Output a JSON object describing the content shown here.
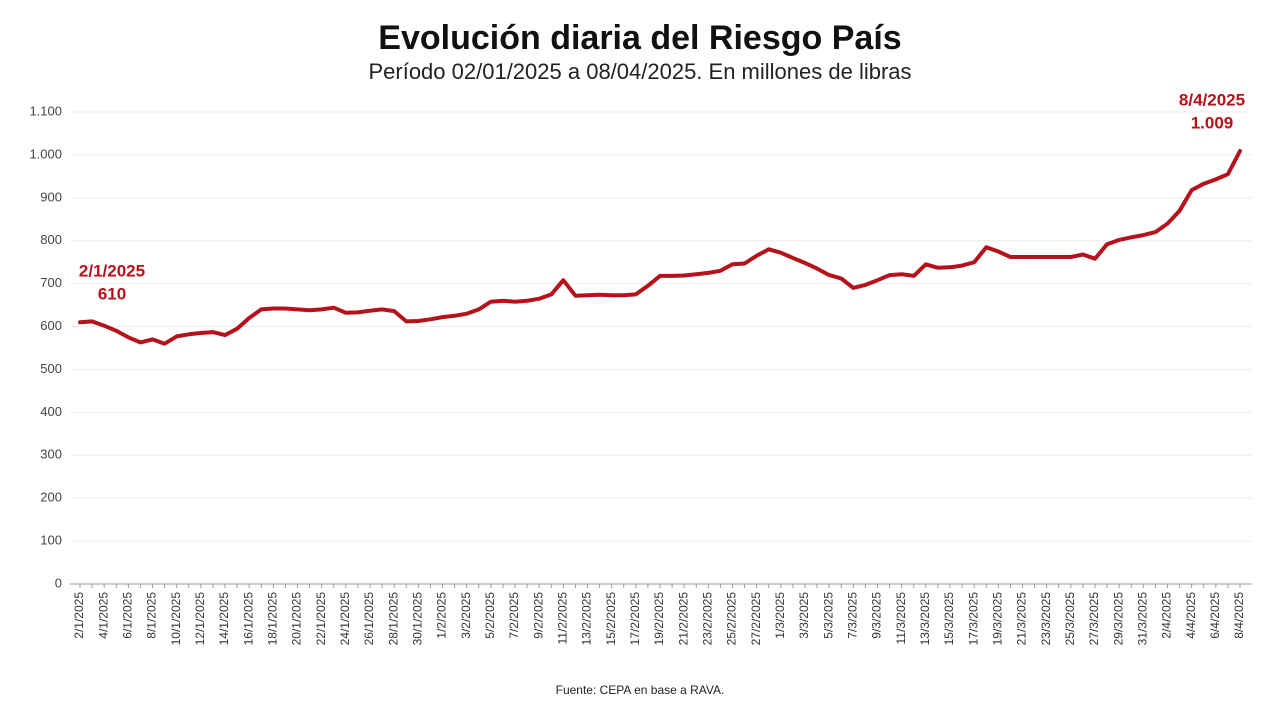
{
  "chart_data": {
    "type": "line",
    "title": "Evolución diaria del Riesgo País",
    "subtitle": "Período 02/01/2025 a 08/04/2025. En millones de libras",
    "source": "Fuente: CEPA en base a RAVA.",
    "categories": [
      "2/1/2025",
      null,
      "4/1/2025",
      null,
      "6/1/2025",
      null,
      "8/1/2025",
      null,
      "10/1/2025",
      null,
      "12/1/2025",
      null,
      "14/1/2025",
      null,
      "16/1/2025",
      null,
      "18/1/2025",
      null,
      "20/1/2025",
      null,
      "22/1/2025",
      null,
      "24/1/2025",
      null,
      "26/1/2025",
      null,
      "28/1/2025",
      null,
      "30/1/2025",
      null,
      "1/2/2025",
      null,
      "3/2/2025",
      null,
      "5/2/2025",
      null,
      "7/2/2025",
      null,
      "9/2/2025",
      null,
      "11/2/2025",
      null,
      "13/2/2025",
      null,
      "15/2/2025",
      null,
      "17/2/2025",
      null,
      "19/2/2025",
      null,
      "21/2/2025",
      null,
      "23/2/2025",
      null,
      "25/2/2025",
      null,
      "27/2/2025",
      null,
      "1/3/2025",
      null,
      "3/3/2025",
      null,
      "5/3/2025",
      null,
      "7/3/2025",
      null,
      "9/3/2025",
      null,
      "11/3/2025",
      null,
      "13/3/2025",
      null,
      "15/3/2025",
      null,
      "17/3/2025",
      null,
      "19/3/2025",
      null,
      "21/3/2025",
      null,
      "23/3/2025",
      null,
      "25/3/2025",
      null,
      "27/3/2025",
      null,
      "29/3/2025",
      null,
      "31/3/2025",
      null,
      "2/4/2025",
      null,
      "4/4/2025",
      null,
      "6/4/2025",
      null,
      "8/4/2025"
    ],
    "series": [
      {
        "name": "Riesgo País",
        "color": "#b5121b",
        "values": [
          610,
          612,
          602,
          590,
          575,
          563,
          570,
          560,
          577,
          582,
          585,
          587,
          580,
          595,
          620,
          640,
          642,
          642,
          640,
          638,
          640,
          644,
          632,
          633,
          637,
          640,
          636,
          612,
          613,
          617,
          622,
          625,
          630,
          640,
          658,
          660,
          658,
          660,
          665,
          675,
          708,
          672,
          673,
          674,
          673,
          673,
          675,
          695,
          718,
          718,
          719,
          722,
          725,
          730,
          745,
          747,
          765,
          780,
          772,
          760,
          748,
          735,
          720,
          712,
          690,
          697,
          708,
          720,
          722,
          718,
          745,
          737,
          738,
          742,
          750,
          785,
          775,
          762,
          762,
          762,
          762,
          762,
          762,
          768,
          758,
          792,
          802,
          808,
          813,
          820,
          840,
          870,
          918,
          933,
          943,
          955,
          1009
        ],
        "value_labels": [
          "610",
          null,
          null,
          null,
          null,
          null,
          null,
          null,
          null,
          null,
          null,
          null,
          null,
          null,
          null,
          null,
          null,
          null,
          null,
          null,
          null,
          null,
          null,
          null,
          null,
          null,
          null,
          null,
          null,
          null,
          null,
          null,
          null,
          null,
          null,
          null,
          null,
          null,
          null,
          null,
          null,
          null,
          null,
          null,
          null,
          null,
          null,
          null,
          null,
          null,
          null,
          null,
          null,
          null,
          null,
          null,
          null,
          null,
          null,
          null,
          null,
          null,
          null,
          null,
          null,
          null,
          null,
          null,
          null,
          null,
          null,
          null,
          null,
          null,
          null,
          null,
          null,
          null,
          null,
          null,
          null,
          null,
          null,
          null,
          null,
          null,
          null,
          null,
          null,
          null,
          null,
          null,
          null,
          null,
          null,
          null,
          "1.009"
        ]
      }
    ],
    "ylim": [
      0,
      1100
    ],
    "yticks": [
      0,
      100,
      200,
      300,
      400,
      500,
      600,
      700,
      800,
      900,
      {
        "value": 1000,
        "label": "1.000"
      },
      {
        "value": 1100,
        "label": "1.100"
      }
    ],
    "grid": true
  }
}
